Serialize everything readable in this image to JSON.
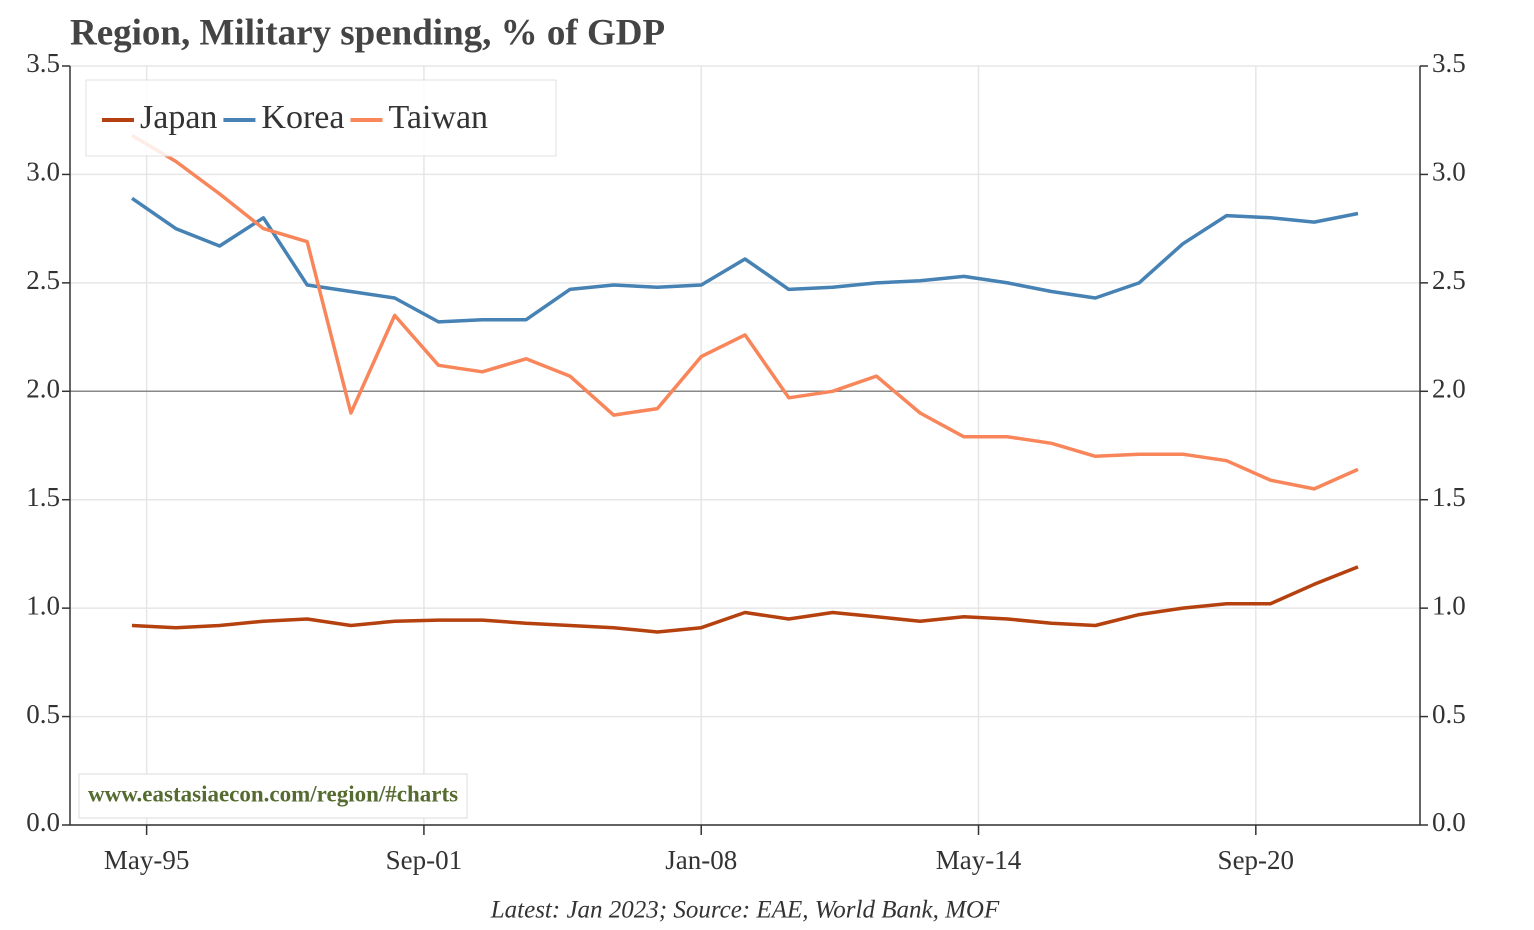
{
  "chart_data": {
    "type": "line",
    "title": "Region, Military spending, % of GDP",
    "source": "Latest: Jan 2023; Source: EAE, World Bank, MOF",
    "watermark": "www.eastasiaecon.com/region/#charts",
    "x": [
      "1995-01",
      "1996-01",
      "1997-01",
      "1998-01",
      "1999-01",
      "2000-01",
      "2001-01",
      "2002-01",
      "2003-01",
      "2004-01",
      "2005-01",
      "2006-01",
      "2007-01",
      "2008-01",
      "2009-01",
      "2010-01",
      "2011-01",
      "2012-01",
      "2013-01",
      "2014-01",
      "2015-01",
      "2016-01",
      "2017-01",
      "2018-01",
      "2019-01",
      "2020-01",
      "2021-01",
      "2022-01",
      "2023-01"
    ],
    "series": [
      {
        "name": "Japan",
        "color": "#b5410f",
        "values": [
          0.92,
          0.91,
          0.92,
          0.94,
          0.95,
          0.92,
          0.94,
          0.945,
          0.945,
          0.93,
          0.92,
          0.91,
          0.89,
          0.91,
          0.98,
          0.95,
          0.98,
          0.96,
          0.94,
          0.96,
          0.95,
          0.93,
          0.92,
          0.97,
          1.0,
          1.02,
          1.02,
          1.11,
          1.19
        ]
      },
      {
        "name": "Korea",
        "color": "#4682b4",
        "values": [
          2.89,
          2.75,
          2.67,
          2.8,
          2.49,
          2.46,
          2.43,
          2.32,
          2.33,
          2.33,
          2.47,
          2.49,
          2.48,
          2.49,
          2.61,
          2.47,
          2.48,
          2.5,
          2.51,
          2.53,
          2.5,
          2.46,
          2.43,
          2.5,
          2.68,
          2.81,
          2.8,
          2.78,
          2.82
        ]
      },
      {
        "name": "Taiwan",
        "color": "#f8865a",
        "values": [
          3.18,
          3.06,
          2.91,
          2.75,
          2.69,
          1.9,
          2.35,
          2.12,
          2.09,
          2.15,
          2.07,
          1.89,
          1.92,
          2.16,
          2.26,
          1.97,
          2.0,
          2.07,
          1.9,
          1.79,
          1.79,
          1.76,
          1.7,
          1.71,
          1.71,
          1.68,
          1.59,
          1.55,
          1.64
        ]
      }
    ],
    "xlim": [
      "1993-08",
      "2024-06"
    ],
    "xticks": [
      {
        "value": "1995-05",
        "label": "May-95"
      },
      {
        "value": "2001-09",
        "label": "Sep-01"
      },
      {
        "value": "2008-01",
        "label": "Jan-08"
      },
      {
        "value": "2014-05",
        "label": "May-14"
      },
      {
        "value": "2020-09",
        "label": "Sep-20"
      }
    ],
    "ylim": [
      0,
      3.5
    ],
    "yticks": [
      {
        "value": 0,
        "label": "0.0"
      },
      0.5,
      {
        "value": 1,
        "label": "1.0"
      },
      1.5,
      {
        "value": 2,
        "label": "2.0"
      },
      2.5,
      {
        "value": 3,
        "label": "3.0"
      },
      3.5
    ],
    "y2lim": [
      0,
      3.5
    ],
    "y2ticks": [
      {
        "value": 0,
        "label": "0.0"
      },
      0.5,
      {
        "value": 1,
        "label": "1.0"
      },
      1.5,
      {
        "value": 2,
        "label": "2.0"
      },
      2.5,
      {
        "value": 3,
        "label": "3.0"
      },
      3.5
    ],
    "reference_line": 2,
    "grid": true,
    "legend": "upper left"
  }
}
